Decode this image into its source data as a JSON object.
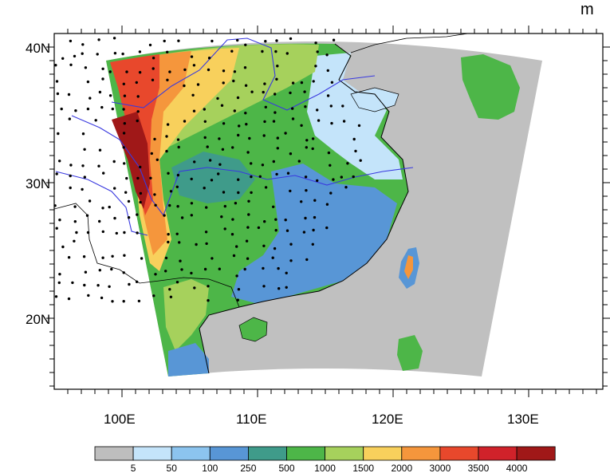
{
  "map": {
    "unit": "m",
    "lat_labels": [
      "40N",
      "30N",
      "20N"
    ],
    "lon_labels": [
      "100E",
      "110E",
      "120E",
      "130E"
    ],
    "colors": {
      "ocean": "#c0c0c0",
      "border": "#000000",
      "river": "#3a3adf",
      "station": "#000000"
    }
  },
  "colorbar": {
    "labels": [
      "5",
      "50",
      "100",
      "250",
      "500",
      "1000",
      "1500",
      "2000",
      "3000",
      "3500",
      "4000"
    ],
    "colors": [
      "#bebebe",
      "#c4e4fa",
      "#8cc4ef",
      "#5896d6",
      "#3f9b8a",
      "#4db648",
      "#a6d15c",
      "#f8d05c",
      "#f5963c",
      "#e8482c",
      "#d0222a",
      "#a01818"
    ]
  }
}
